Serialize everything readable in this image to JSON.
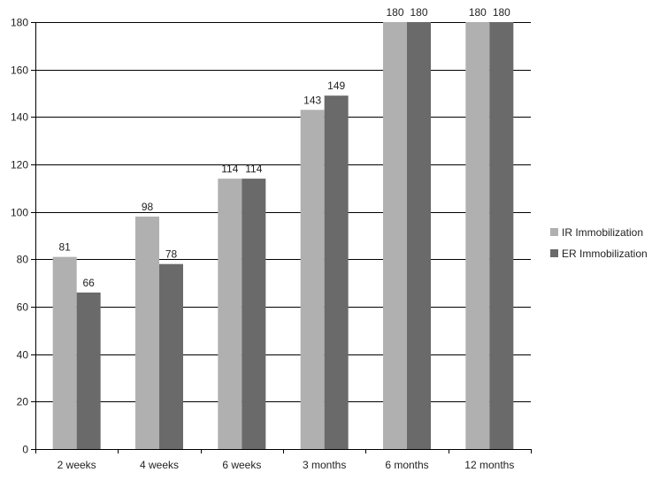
{
  "chart_data": {
    "type": "bar",
    "categories": [
      "2 weeks",
      "4 weeks",
      "6 weeks",
      "3 months",
      "6 months",
      "12 months"
    ],
    "series": [
      {
        "name": "IR Immobilization",
        "values": [
          81,
          98,
          114,
          143,
          180,
          180
        ],
        "color": "#b0b0b0"
      },
      {
        "name": "ER Immobilization",
        "values": [
          66,
          78,
          114,
          149,
          180,
          180
        ],
        "color": "#6a6a6a"
      }
    ],
    "title": "",
    "xlabel": "",
    "ylabel": "",
    "ylim": [
      0,
      180
    ],
    "yticks": [
      0,
      20,
      40,
      60,
      80,
      100,
      120,
      140,
      160,
      180
    ],
    "grid": true,
    "legend_position": "right",
    "data_labels": true
  }
}
